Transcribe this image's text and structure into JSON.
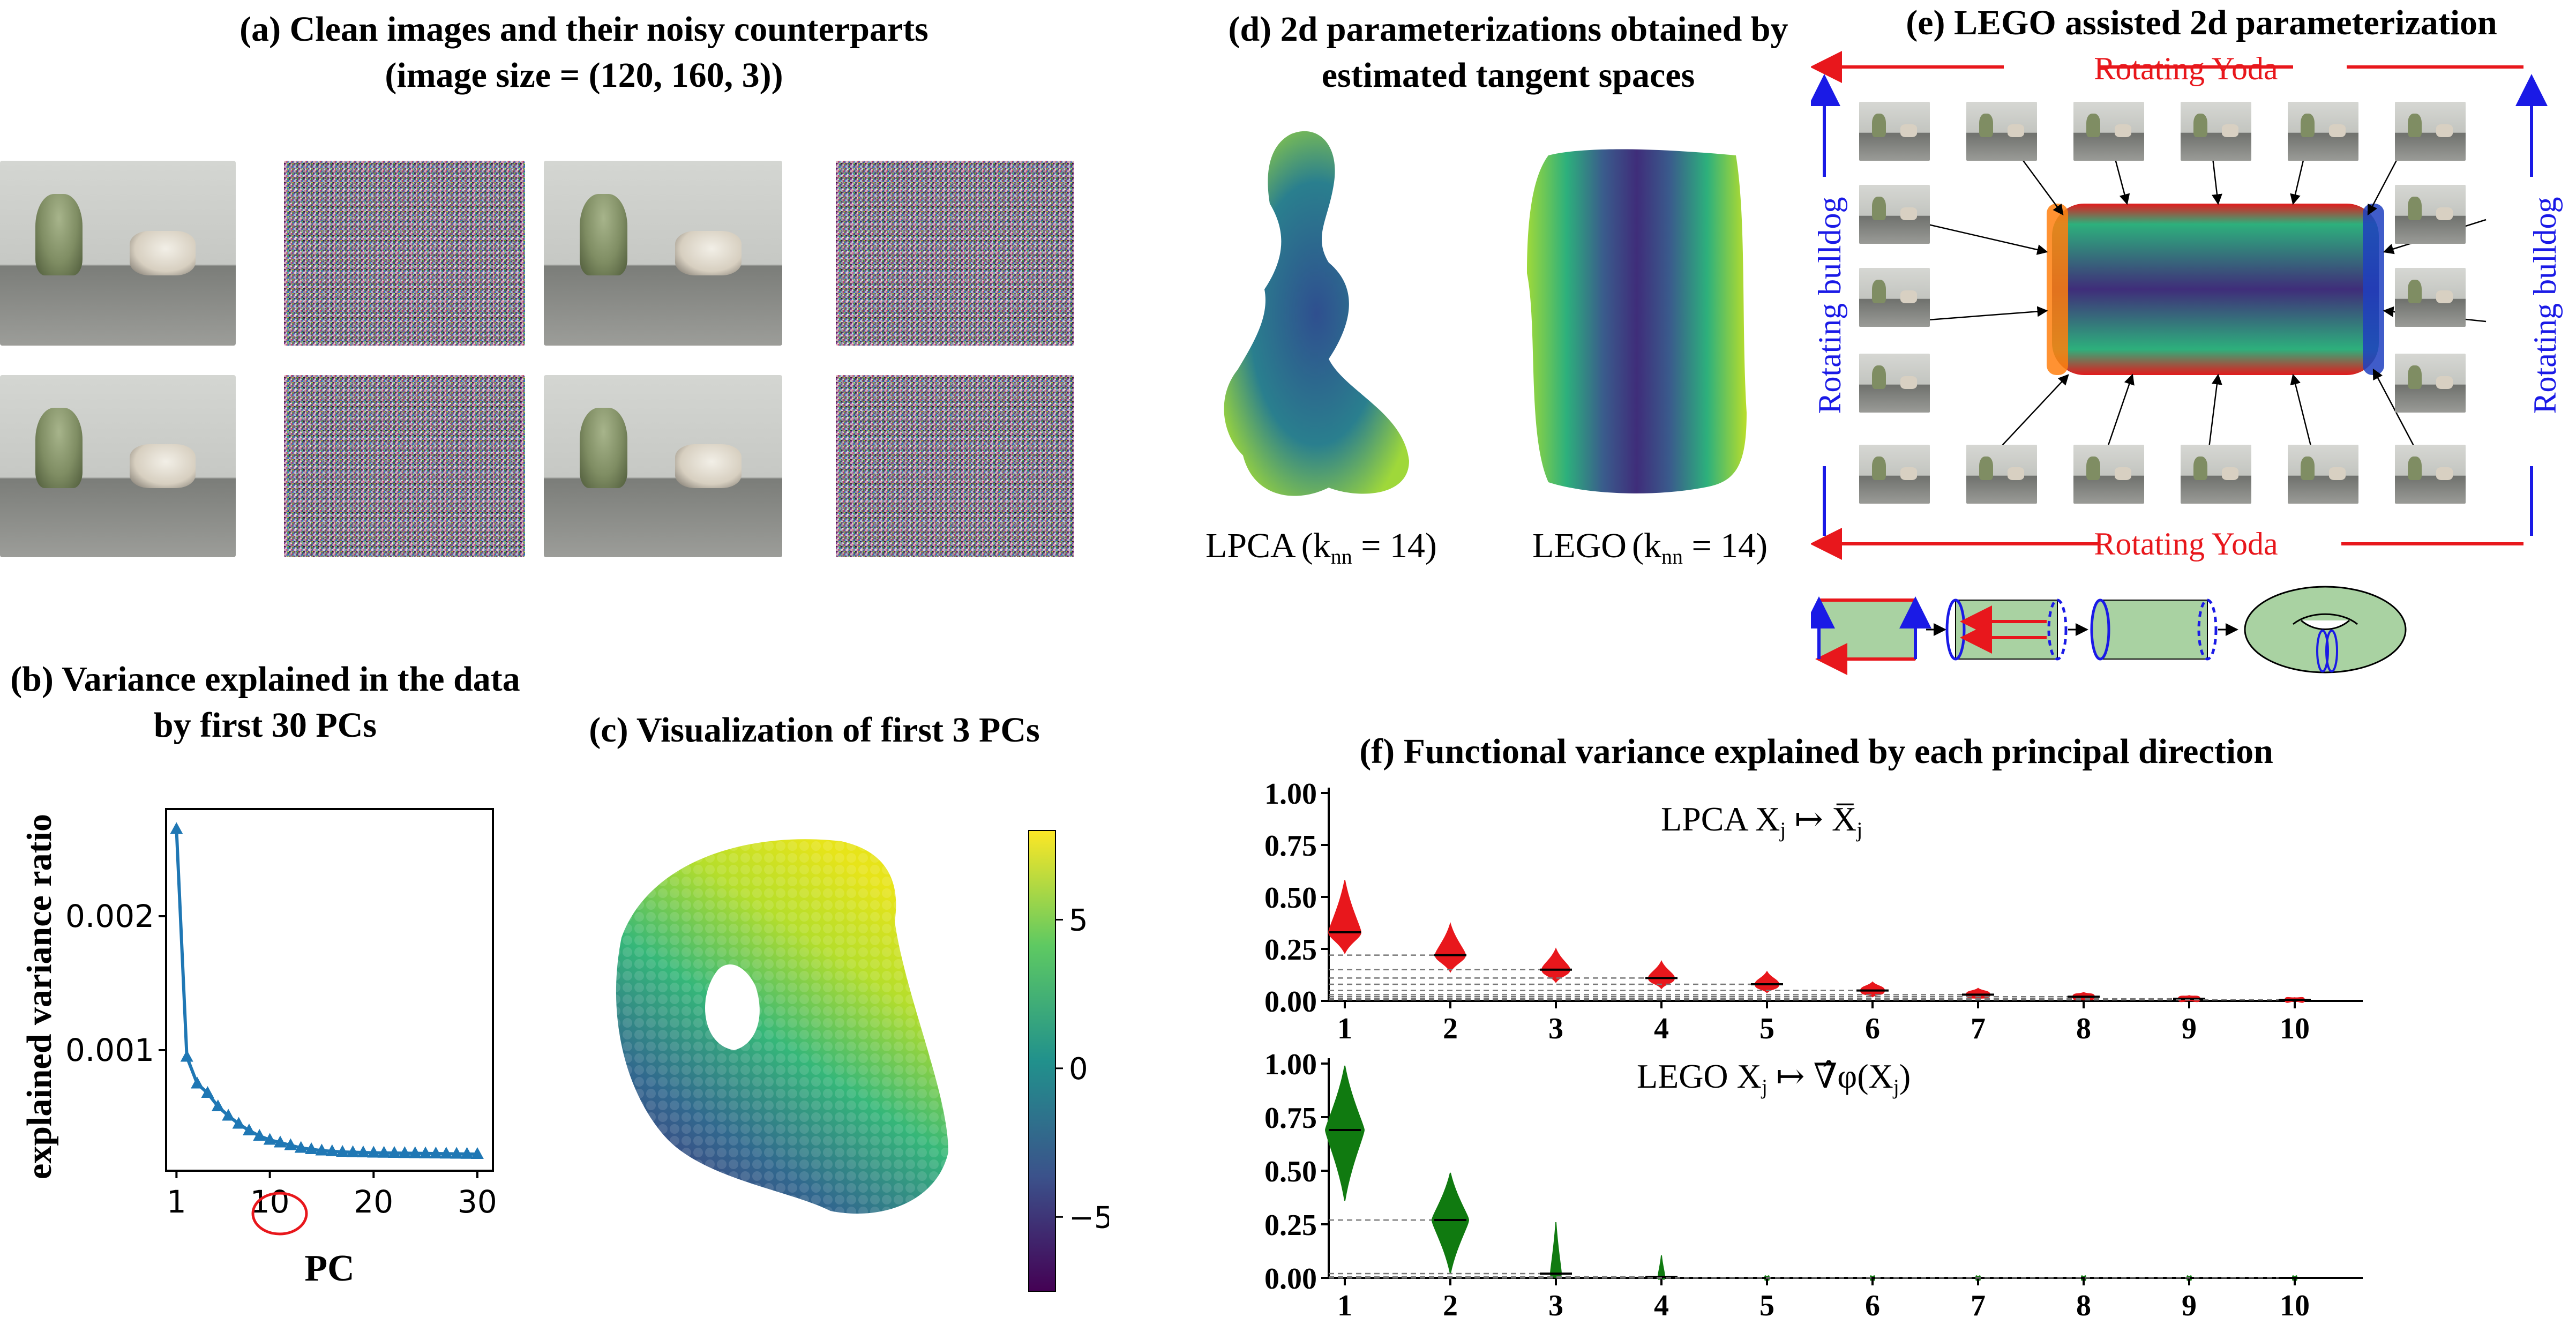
{
  "panel_a": {
    "title_line1": "(a) Clean images and their noisy counterparts",
    "title_line2": "(image size = (120, 160, 3))"
  },
  "panel_b": {
    "title_line1": "(b) Variance explained in the data",
    "title_line2": "by first 30 PCs"
  },
  "panel_c": {
    "title": "(c)  Visualization of first 3 PCs"
  },
  "panel_d": {
    "title_line1": "(d) 2d parameterizations obtained by",
    "title_line2": "estimated tangent spaces",
    "label_lpca": "LPCA",
    "label_lego": "LEGO",
    "knn_left": "(k",
    "knn_sub": "nn",
    "knn_right": " = 14)"
  },
  "panel_e": {
    "title": "(e)  LEGO assisted 2d parameterization",
    "top_label": "Rotating Yoda",
    "bottom_label": "Rotating Yoda",
    "left_label": "Rotating bulldog",
    "right_label": "Rotating bulldog"
  },
  "panel_f": {
    "title": "(f)  Functional variance explained by each principal direction",
    "lpca_label": "LPCA  X",
    "lpca_sub": "j",
    "lpca_map": " ↦ X̅",
    "lego_label": "LEGO  X",
    "lego_sub": "j",
    "lego_map": " ↦ ∇̂φ(X",
    "lego_close": ")"
  },
  "colors": {
    "line_blue": "#1f77b4",
    "red": "#e8171c",
    "green": "#107a10",
    "arrow_blue": "#1a1ae6"
  },
  "chart_data": [
    {
      "type": "line",
      "title": "(b) Variance explained in the data by first 30 PCs",
      "xlabel": "PC",
      "ylabel": "explained variance ratio",
      "x": [
        1,
        2,
        3,
        4,
        5,
        6,
        7,
        8,
        9,
        10,
        11,
        12,
        13,
        14,
        15,
        16,
        17,
        18,
        19,
        20,
        21,
        22,
        23,
        24,
        25,
        26,
        27,
        28,
        29,
        30
      ],
      "values": [
        0.00265,
        0.00095,
        0.00075,
        0.00068,
        0.00058,
        0.00051,
        0.00045,
        0.0004,
        0.00036,
        0.00033,
        0.00031,
        0.00029,
        0.00027,
        0.00026,
        0.00025,
        0.000245,
        0.00024,
        0.000238,
        0.000236,
        0.000234,
        0.000233,
        0.000232,
        0.000231,
        0.00023,
        0.000229,
        0.000228,
        0.000227,
        0.000226,
        0.000225,
        0.000224
      ],
      "xticks": [
        "1",
        "10",
        "20",
        "30"
      ],
      "yticks": [
        "0.001",
        "0.002"
      ],
      "ylim": [
        0.0001,
        0.0028
      ],
      "highlight": "10"
    },
    {
      "type": "scatter",
      "title": "(c) Visualization of first 3 PCs",
      "colorbar_ticks": [
        "5",
        "0",
        "−5"
      ],
      "colorbar_range": [
        -7.5,
        8
      ]
    },
    {
      "type": "violin",
      "title": "LPCA",
      "categories": [
        "1",
        "2",
        "3",
        "4",
        "5",
        "6",
        "7",
        "8",
        "9",
        "10"
      ],
      "medians": [
        0.33,
        0.22,
        0.15,
        0.11,
        0.08,
        0.05,
        0.03,
        0.02,
        0.01,
        0.005
      ],
      "yticks": [
        "0.00",
        "0.25",
        "0.50",
        "0.75",
        "1.00"
      ],
      "ylim": [
        0,
        1
      ]
    },
    {
      "type": "violin",
      "title": "LEGO",
      "categories": [
        "1",
        "2",
        "3",
        "4",
        "5",
        "6",
        "7",
        "8",
        "9",
        "10"
      ],
      "medians": [
        0.69,
        0.27,
        0.02,
        0.005,
        0.0,
        0.0,
        0.0,
        0.0,
        0.0,
        0.0
      ],
      "yticks": [
        "0.00",
        "0.25",
        "0.50",
        "0.75",
        "1.00"
      ],
      "ylim": [
        0,
        1
      ]
    }
  ]
}
